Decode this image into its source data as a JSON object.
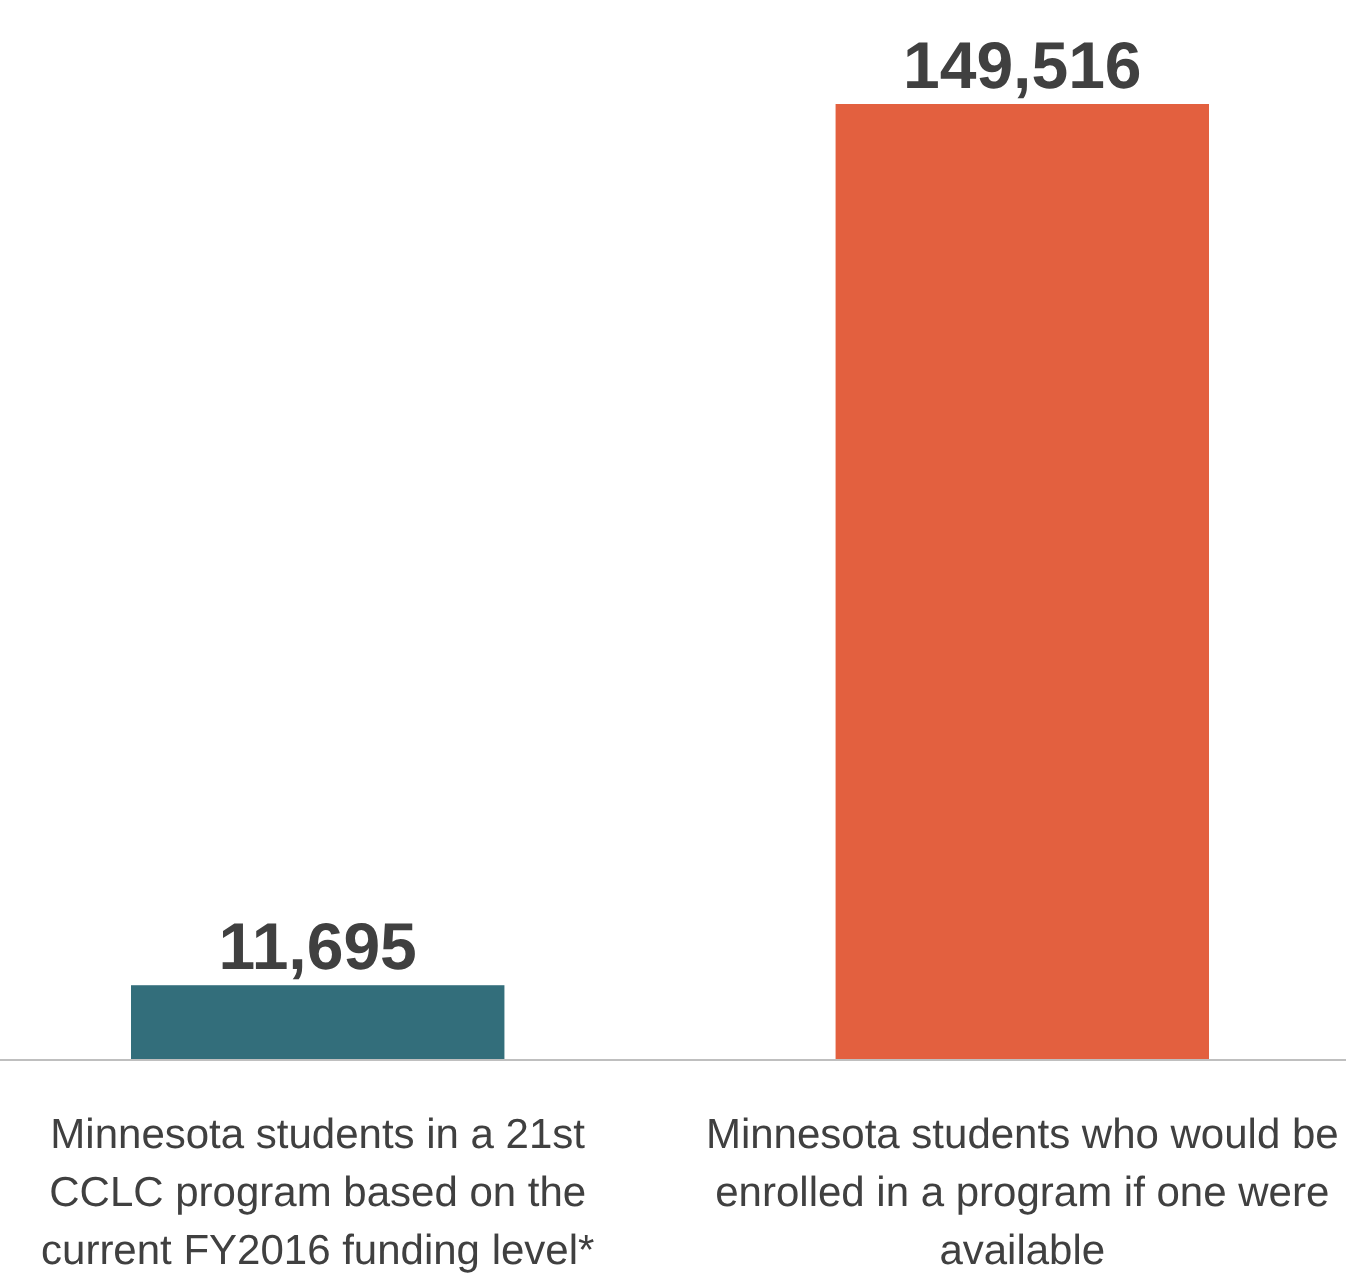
{
  "chart_data": {
    "type": "bar",
    "categories": [
      "Minnesota students in a 21st CCLC program based on the current FY2016 funding level*",
      "Minnesota students who would be enrolled in a program if one were available"
    ],
    "values": [
      11695,
      149516
    ],
    "colors": [
      "#336e7b",
      "#e3603f"
    ],
    "value_labels": [
      "11,695",
      "149,516"
    ],
    "tick_labels": "x"
  }
}
